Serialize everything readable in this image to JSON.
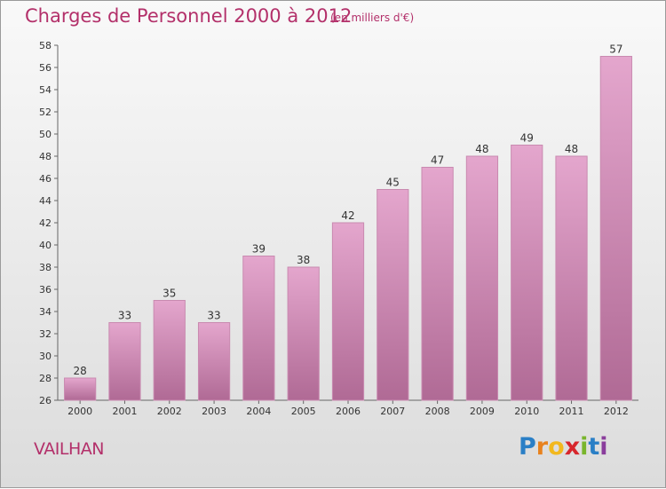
{
  "title": "Charges de Personnel 2000 à 2012",
  "subtitle": "(en milliers d'€)",
  "commune": "VAILHAN",
  "logo": {
    "letters": [
      "P",
      "r",
      "o",
      "x",
      "i",
      "t",
      "i"
    ],
    "colors": [
      "#2a7fc6",
      "#e8821e",
      "#f2b81e",
      "#d7262c",
      "#79b52c",
      "#2a7fc6",
      "#8a3d9c"
    ]
  },
  "colors": {
    "accent": "#b3306a",
    "bar_top": "#e4a6cd",
    "bar_bottom": "#b06a95"
  },
  "chart_data": {
    "type": "bar",
    "categories": [
      "2000",
      "2001",
      "2002",
      "2003",
      "2004",
      "2005",
      "2006",
      "2007",
      "2008",
      "2009",
      "2010",
      "2011",
      "2012"
    ],
    "values": [
      28,
      33,
      35,
      33,
      39,
      38,
      42,
      45,
      47,
      48,
      49,
      48,
      57
    ],
    "ylim": [
      26,
      58
    ],
    "yticks": [
      26,
      28,
      30,
      32,
      34,
      36,
      38,
      40,
      42,
      44,
      46,
      48,
      50,
      52,
      54,
      56,
      58
    ],
    "grid": false,
    "data_labels": true
  }
}
